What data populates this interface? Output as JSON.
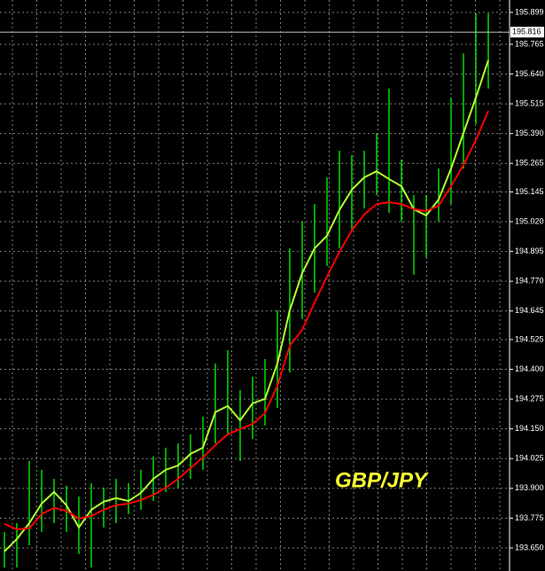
{
  "chart_data": {
    "type": "ohlc",
    "annotation": "GBP/JPY",
    "annotation_color": "#ffff33",
    "bar_color": "#00ff00",
    "high": [
      193.717,
      193.754,
      194.015,
      193.978,
      193.94,
      193.911,
      193.866,
      193.922,
      193.903,
      193.94,
      193.922,
      193.978,
      194.034,
      194.071,
      194.089,
      194.127,
      194.201,
      194.424,
      194.48,
      194.313,
      194.369,
      194.443,
      194.648,
      194.908,
      195.02,
      195.094,
      195.206,
      195.318,
      195.299,
      195.318,
      195.392,
      195.579,
      195.281,
      195.132,
      195.132,
      195.243,
      195.541,
      195.727,
      195.895,
      195.895
    ],
    "low": [
      193.568,
      193.568,
      193.661,
      193.717,
      193.754,
      193.717,
      193.624,
      193.568,
      193.736,
      193.754,
      193.792,
      193.81,
      193.847,
      193.885,
      193.903,
      193.94,
      193.978,
      194.089,
      194.127,
      194.015,
      194.108,
      194.164,
      194.238,
      194.387,
      194.611,
      194.722,
      194.834,
      194.908,
      194.983,
      195.076,
      195.132,
      195.057,
      195.02,
      194.797,
      194.871,
      195.02,
      195.094,
      195.243,
      195.43,
      195.579
    ],
    "lines": [
      {
        "color": "#b4ff32",
        "values": [
          193.635,
          193.687,
          193.754,
          193.836,
          193.885,
          193.829,
          193.736,
          193.81,
          193.844,
          193.859,
          193.847,
          193.881,
          193.94,
          193.978,
          193.996,
          194.045,
          194.071,
          194.22,
          194.246,
          194.186,
          194.257,
          194.276,
          194.424,
          194.648,
          194.804,
          194.908,
          194.961,
          195.069,
          195.154,
          195.206,
          195.232,
          195.199,
          195.169,
          195.072,
          195.046,
          195.113,
          195.243,
          195.392,
          195.541,
          195.698
        ]
      },
      {
        "color": "#ff0000",
        "values": [
          193.751,
          193.728,
          193.732,
          193.792,
          193.818,
          193.806,
          193.773,
          193.784,
          193.81,
          193.829,
          193.836,
          193.851,
          193.873,
          193.903,
          193.94,
          193.985,
          194.03,
          194.082,
          194.127,
          194.149,
          194.171,
          194.216,
          194.331,
          194.499,
          194.566,
          194.681,
          194.789,
          194.893,
          194.983,
          195.05,
          195.094,
          195.102,
          195.094,
          195.072,
          195.065,
          195.087,
          195.169,
          195.258,
          195.363,
          195.485
        ]
      }
    ],
    "current_price": 195.816,
    "ylim": [
      193.553,
      195.951
    ],
    "yticks": [
      195.899,
      195.765,
      {
        "value": 195.64,
        "label": "195.640"
      },
      195.515,
      {
        "value": 195.39,
        "label": "195.390"
      },
      195.265,
      195.145,
      {
        "value": 195.02,
        "label": "195.020"
      },
      194.895,
      {
        "value": 194.77,
        "label": "194.770"
      },
      194.645,
      194.525,
      {
        "value": 194.4,
        "label": "194.400"
      },
      194.275,
      {
        "value": 194.15,
        "label": "194.150"
      },
      194.025,
      {
        "value": 193.9,
        "label": "193.900"
      },
      193.775,
      {
        "value": 193.65,
        "label": "193.650"
      }
    ],
    "grid": true
  }
}
